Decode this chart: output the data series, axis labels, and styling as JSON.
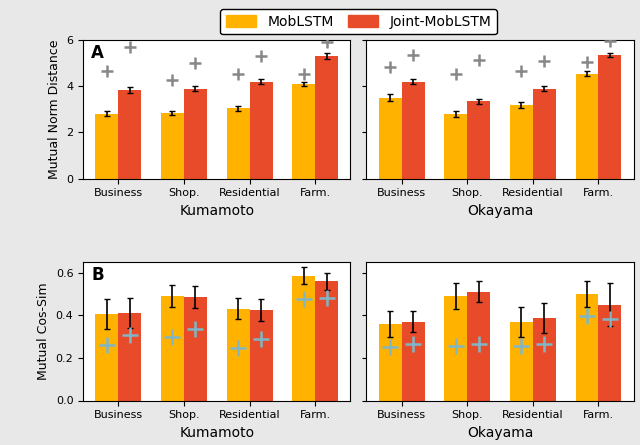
{
  "legend_labels": [
    "MobLSTM",
    "Joint-MobLSTM"
  ],
  "colors": [
    "#FFB300",
    "#E84B2A"
  ],
  "categories": [
    "Business",
    "Shop.",
    "Residential",
    "Farm."
  ],
  "panel_A": {
    "ylabel": "Mutual Norm Distance",
    "ylim": [
      0,
      6
    ],
    "yticks": [
      0,
      2,
      4,
      6
    ],
    "kumamoto": {
      "mob": [
        2.82,
        2.85,
        3.05,
        4.1
      ],
      "joint": [
        3.85,
        3.9,
        4.2,
        5.3
      ],
      "mob_err": [
        0.12,
        0.1,
        0.1,
        0.1
      ],
      "joint_err": [
        0.12,
        0.12,
        0.1,
        0.12
      ],
      "mob_plus": [
        4.65,
        4.25,
        4.55,
        4.55
      ],
      "joint_plus": [
        5.7,
        5.0,
        5.3,
        5.9
      ]
    },
    "okayama": {
      "mob": [
        3.5,
        2.8,
        3.2,
        4.55
      ],
      "joint": [
        4.2,
        3.35,
        3.9,
        5.35
      ],
      "mob_err": [
        0.15,
        0.12,
        0.12,
        0.12
      ],
      "joint_err": [
        0.12,
        0.12,
        0.1,
        0.1
      ],
      "mob_plus": [
        4.85,
        4.55,
        4.65,
        5.05
      ],
      "joint_plus": [
        5.35,
        5.15,
        5.1,
        5.95
      ]
    }
  },
  "panel_B": {
    "ylabel": "Mutual Cos-Sim",
    "ylim": [
      0.0,
      0.65
    ],
    "yticks": [
      0.0,
      0.2,
      0.4,
      0.6
    ],
    "kumamoto": {
      "mob": [
        0.405,
        0.49,
        0.43,
        0.585
      ],
      "joint": [
        0.41,
        0.485,
        0.425,
        0.56
      ],
      "mob_err": [
        0.07,
        0.05,
        0.05,
        0.04
      ],
      "joint_err": [
        0.07,
        0.05,
        0.05,
        0.04
      ],
      "mob_plus": [
        0.26,
        0.3,
        0.245,
        0.475
      ],
      "joint_plus": [
        0.305,
        0.335,
        0.29,
        0.48
      ]
    },
    "okayama": {
      "mob": [
        0.36,
        0.49,
        0.37,
        0.5
      ],
      "joint": [
        0.37,
        0.51,
        0.385,
        0.45
      ],
      "mob_err": [
        0.06,
        0.06,
        0.07,
        0.06
      ],
      "joint_err": [
        0.05,
        0.05,
        0.07,
        0.1
      ],
      "mob_plus": [
        0.25,
        0.255,
        0.255,
        0.395
      ],
      "joint_plus": [
        0.265,
        0.265,
        0.265,
        0.38
      ]
    }
  },
  "fig_facecolor": "#E8E8E8",
  "ax_facecolor": "#FFFFFF",
  "gray_plus_color": "#888888",
  "blue_plus_color": "#7EB6C8"
}
